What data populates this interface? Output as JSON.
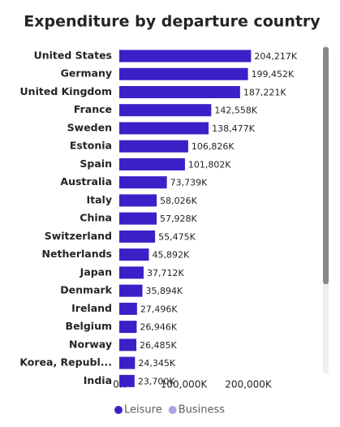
{
  "chart_data": {
    "type": "hbar",
    "title": "Expenditure by departure country",
    "categories": [
      "United States",
      "Germany",
      "United Kingdom",
      "France",
      "Sweden",
      "Estonia",
      "Spain",
      "Australia",
      "Italy",
      "China",
      "Switzerland",
      "Netherlands",
      "Japan",
      "Denmark",
      "Ireland",
      "Belgium",
      "Norway",
      "Korea, Republ...",
      "India"
    ],
    "series": [
      {
        "name": "Leisure",
        "color": "#3d1fc7",
        "values": [
          204217,
          199452,
          187221,
          142558,
          138477,
          106826,
          101802,
          73739,
          58026,
          57928,
          55475,
          45892,
          37712,
          35894,
          27496,
          26946,
          26485,
          24345,
          23700
        ],
        "value_labels": [
          "204,217K",
          "199,452K",
          "187,221K",
          "142,558K",
          "138,477K",
          "106,826K",
          "101,802K",
          "73,739K",
          "58,026K",
          "57,928K",
          "55,475K",
          "45,892K",
          "37,712K",
          "35,894K",
          "27,496K",
          "26,946K",
          "26,485K",
          "24,345K",
          "23,700K"
        ]
      },
      {
        "name": "Business",
        "color": "#aaa6e6",
        "values": [
          null,
          null,
          null,
          null,
          null,
          null,
          null,
          null,
          null,
          null,
          null,
          null,
          null,
          null,
          null,
          null,
          null,
          null,
          null
        ]
      }
    ],
    "xlim": [
      0,
      250000
    ],
    "xticks": [
      {
        "value": 0,
        "label": "0K"
      },
      {
        "value": 100000,
        "label": "100,000K"
      },
      {
        "value": 200000,
        "label": "200,000K"
      }
    ],
    "grid": false,
    "legend": "bottom"
  }
}
